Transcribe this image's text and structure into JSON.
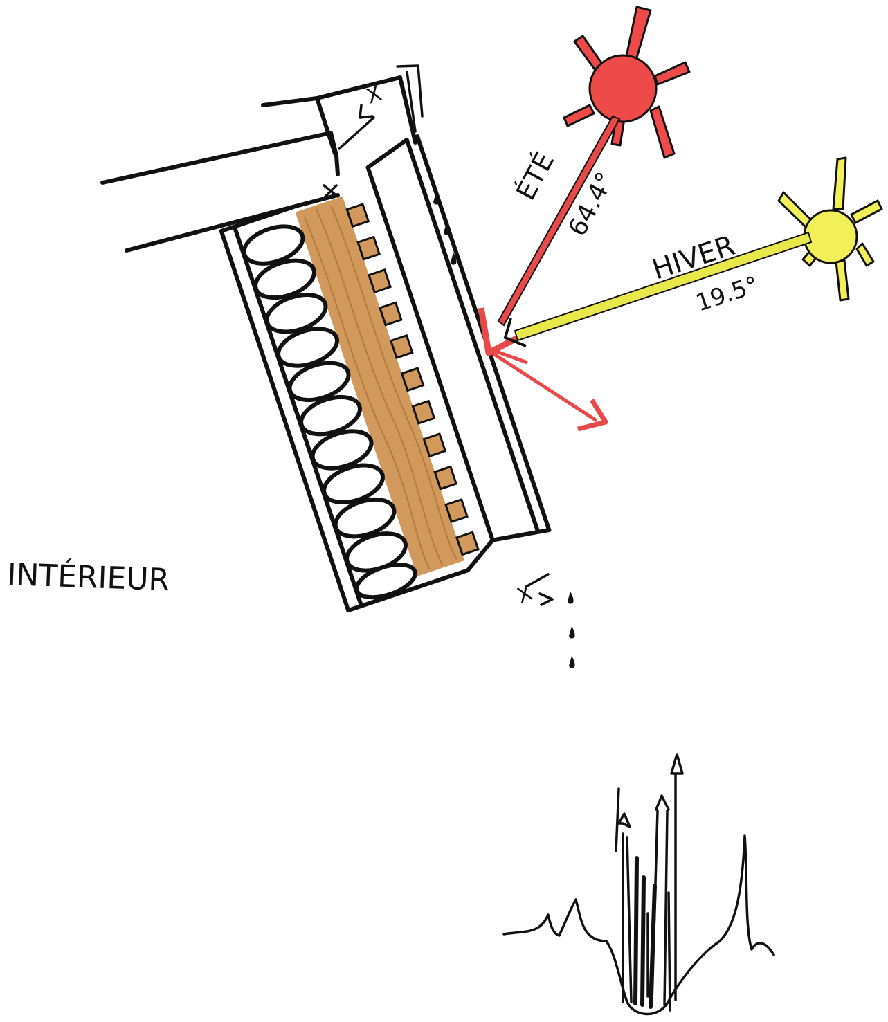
{
  "labels": {
    "interior": "INTÉRIEUR",
    "summer": "ÉTÉ",
    "summer_angle": "64.4°",
    "winter": "HIVER",
    "winter_angle": "19.5°",
    "gap_top": "X",
    "gap_bottom": "X"
  },
  "colors": {
    "ink": "#111111",
    "summer_sun": "#ee4a4a",
    "summer_ray": "#e84a4a",
    "winter_sun": "#f2f058",
    "winter_ray": "#e9e84a",
    "wood": "#d19a5c",
    "wood_grain": "#b37a3d"
  },
  "icons": {
    "summer_sun": "sun-icon",
    "winter_sun": "sun-icon",
    "water_drops": "droplet-icon",
    "fire": "flame-icon"
  }
}
